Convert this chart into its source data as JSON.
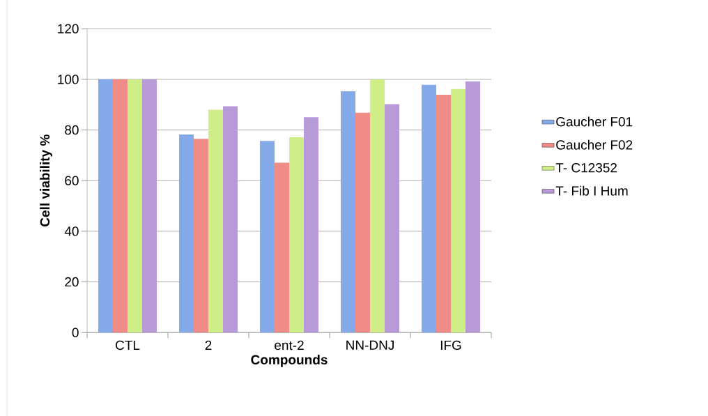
{
  "chart_data": {
    "type": "bar",
    "xlabel": "Compounds",
    "ylabel": "Cell viability %",
    "categories": [
      "CTL",
      "2",
      "ent-2",
      "NN-DNJ",
      "IFG"
    ],
    "series": [
      {
        "name": "Gaucher F01",
        "color": "#84aaea",
        "values": [
          100,
          78.2,
          75.7,
          95.3,
          97.8
        ]
      },
      {
        "name": "Gaucher F02",
        "color": "#f08c88",
        "values": [
          100,
          76.5,
          67.1,
          86.8,
          93.9
        ]
      },
      {
        "name": "T- C12352",
        "color": "#d0ee88",
        "values": [
          100,
          88,
          77.1,
          100,
          96.2
        ]
      },
      {
        "name": "T- Fib I Hum",
        "color": "#b89ad8",
        "values": [
          100,
          89.4,
          85,
          90.2,
          99.2
        ]
      }
    ],
    "ylim": [
      0,
      120
    ],
    "yticks": [
      0,
      20,
      40,
      60,
      80,
      100,
      120
    ],
    "grid": "y",
    "legend": "right"
  }
}
